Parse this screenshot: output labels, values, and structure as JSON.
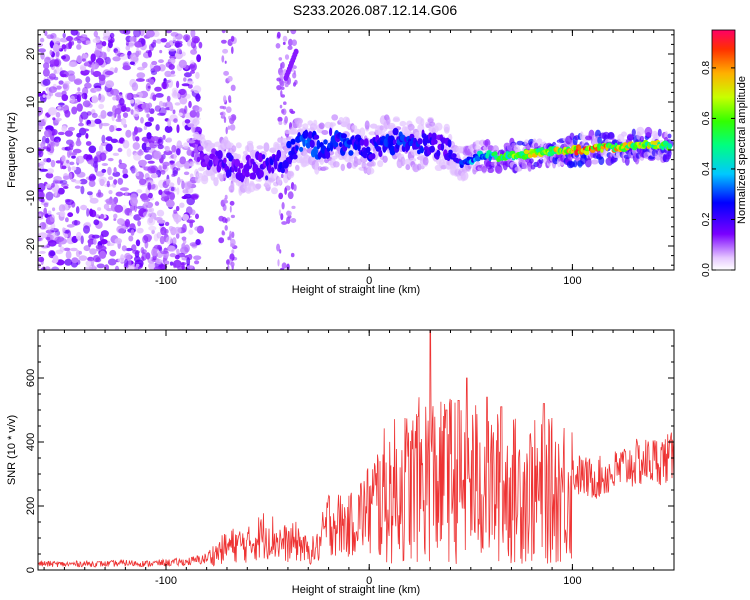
{
  "title": "S233.2026.087.12.14.G06",
  "chart_data": [
    {
      "type": "heatmap",
      "name": "spectrogram",
      "xlabel": "Height of straight line (km)",
      "ylabel": "Frequency (Hz)",
      "xlim": [
        -163,
        150
      ],
      "ylim": [
        -25,
        25
      ],
      "x_ticks": [
        -100,
        0,
        100
      ],
      "x_tick_labels": [
        "-100",
        "0",
        "100"
      ],
      "y_ticks": [
        -20,
        -10,
        0,
        10,
        20
      ],
      "y_tick_labels": [
        "-20",
        "-10",
        "0",
        "10",
        "20"
      ],
      "colorbar": {
        "label": "Normalized spectral amplitude",
        "range": [
          0,
          0.95
        ],
        "ticks": [
          0.0,
          0.2,
          0.4,
          0.6,
          0.8
        ],
        "tick_labels": [
          "0.0",
          "0.2",
          "0.4",
          "0.6",
          "0.8"
        ]
      },
      "noise_region_x": [
        -163,
        -83
      ],
      "ridge": {
        "x": [
          -85,
          -78,
          -70,
          -62,
          -55,
          -48,
          -42,
          -36,
          -30,
          -24,
          -18,
          -10,
          0,
          10,
          20,
          30,
          38,
          45,
          55,
          65,
          75,
          85,
          95,
          105,
          115,
          125,
          135,
          148
        ],
        "freq": [
          -1.5,
          -2,
          -3,
          -4,
          -3,
          -4,
          -2,
          1,
          2,
          0,
          2,
          1,
          0.5,
          2,
          1,
          1.5,
          0,
          -3,
          -1,
          -1.5,
          -1,
          -0.5,
          0,
          0,
          0.5,
          0.5,
          1,
          1
        ],
        "amplitude": [
          0.15,
          0.18,
          0.22,
          0.2,
          0.18,
          0.25,
          0.25,
          0.3,
          0.35,
          0.3,
          0.3,
          0.3,
          0.25,
          0.3,
          0.3,
          0.25,
          0.2,
          0.3,
          0.45,
          0.6,
          0.7,
          0.75,
          0.8,
          0.9,
          0.85,
          0.8,
          0.75,
          0.7
        ]
      }
    },
    {
      "type": "line",
      "name": "snr",
      "xlabel": "Height of straight line (km)",
      "ylabel": "SNR (10 * v/v)",
      "xlim": [
        -163,
        150
      ],
      "ylim": [
        0,
        750
      ],
      "x_ticks": [
        -100,
        0,
        100
      ],
      "x_tick_labels": [
        "-100",
        "0",
        "100"
      ],
      "y_ticks": [
        0,
        200,
        400,
        600
      ],
      "y_tick_labels": [
        "0",
        "200",
        "400",
        "600"
      ],
      "color": "#ee3333",
      "series": [
        {
          "name": "SNR",
          "x": [
            -163,
            -150,
            -140,
            -130,
            -120,
            -110,
            -100,
            -90,
            -80,
            -75,
            -70,
            -65,
            -60,
            -55,
            -50,
            -45,
            -40,
            -35,
            -30,
            -25,
            -20,
            -15,
            -10,
            -5,
            0,
            5,
            10,
            15,
            20,
            25,
            30,
            35,
            40,
            45,
            50,
            55,
            60,
            65,
            70,
            75,
            80,
            85,
            90,
            95,
            100,
            105,
            110,
            115,
            120,
            125,
            130,
            135,
            140,
            145,
            150
          ],
          "y": [
            22,
            20,
            22,
            21,
            24,
            22,
            25,
            28,
            40,
            60,
            80,
            90,
            85,
            110,
            130,
            100,
            90,
            100,
            60,
            80,
            170,
            160,
            150,
            190,
            220,
            260,
            280,
            300,
            310,
            330,
            350,
            320,
            340,
            330,
            330,
            320,
            310,
            300,
            290,
            300,
            290,
            280,
            290,
            300,
            310,
            300,
            290,
            300,
            310,
            330,
            340,
            345,
            350,
            355,
            360
          ]
        }
      ],
      "spikes": [
        {
          "x": 30,
          "y": 750
        },
        {
          "x": 48,
          "y": 600
        },
        {
          "x": 58,
          "y": 540
        },
        {
          "x": 44,
          "y": 530
        },
        {
          "x": 65,
          "y": 510
        },
        {
          "x": 38,
          "y": 500
        },
        {
          "x": 86,
          "y": 520
        },
        {
          "x": 24,
          "y": 480
        }
      ]
    }
  ]
}
